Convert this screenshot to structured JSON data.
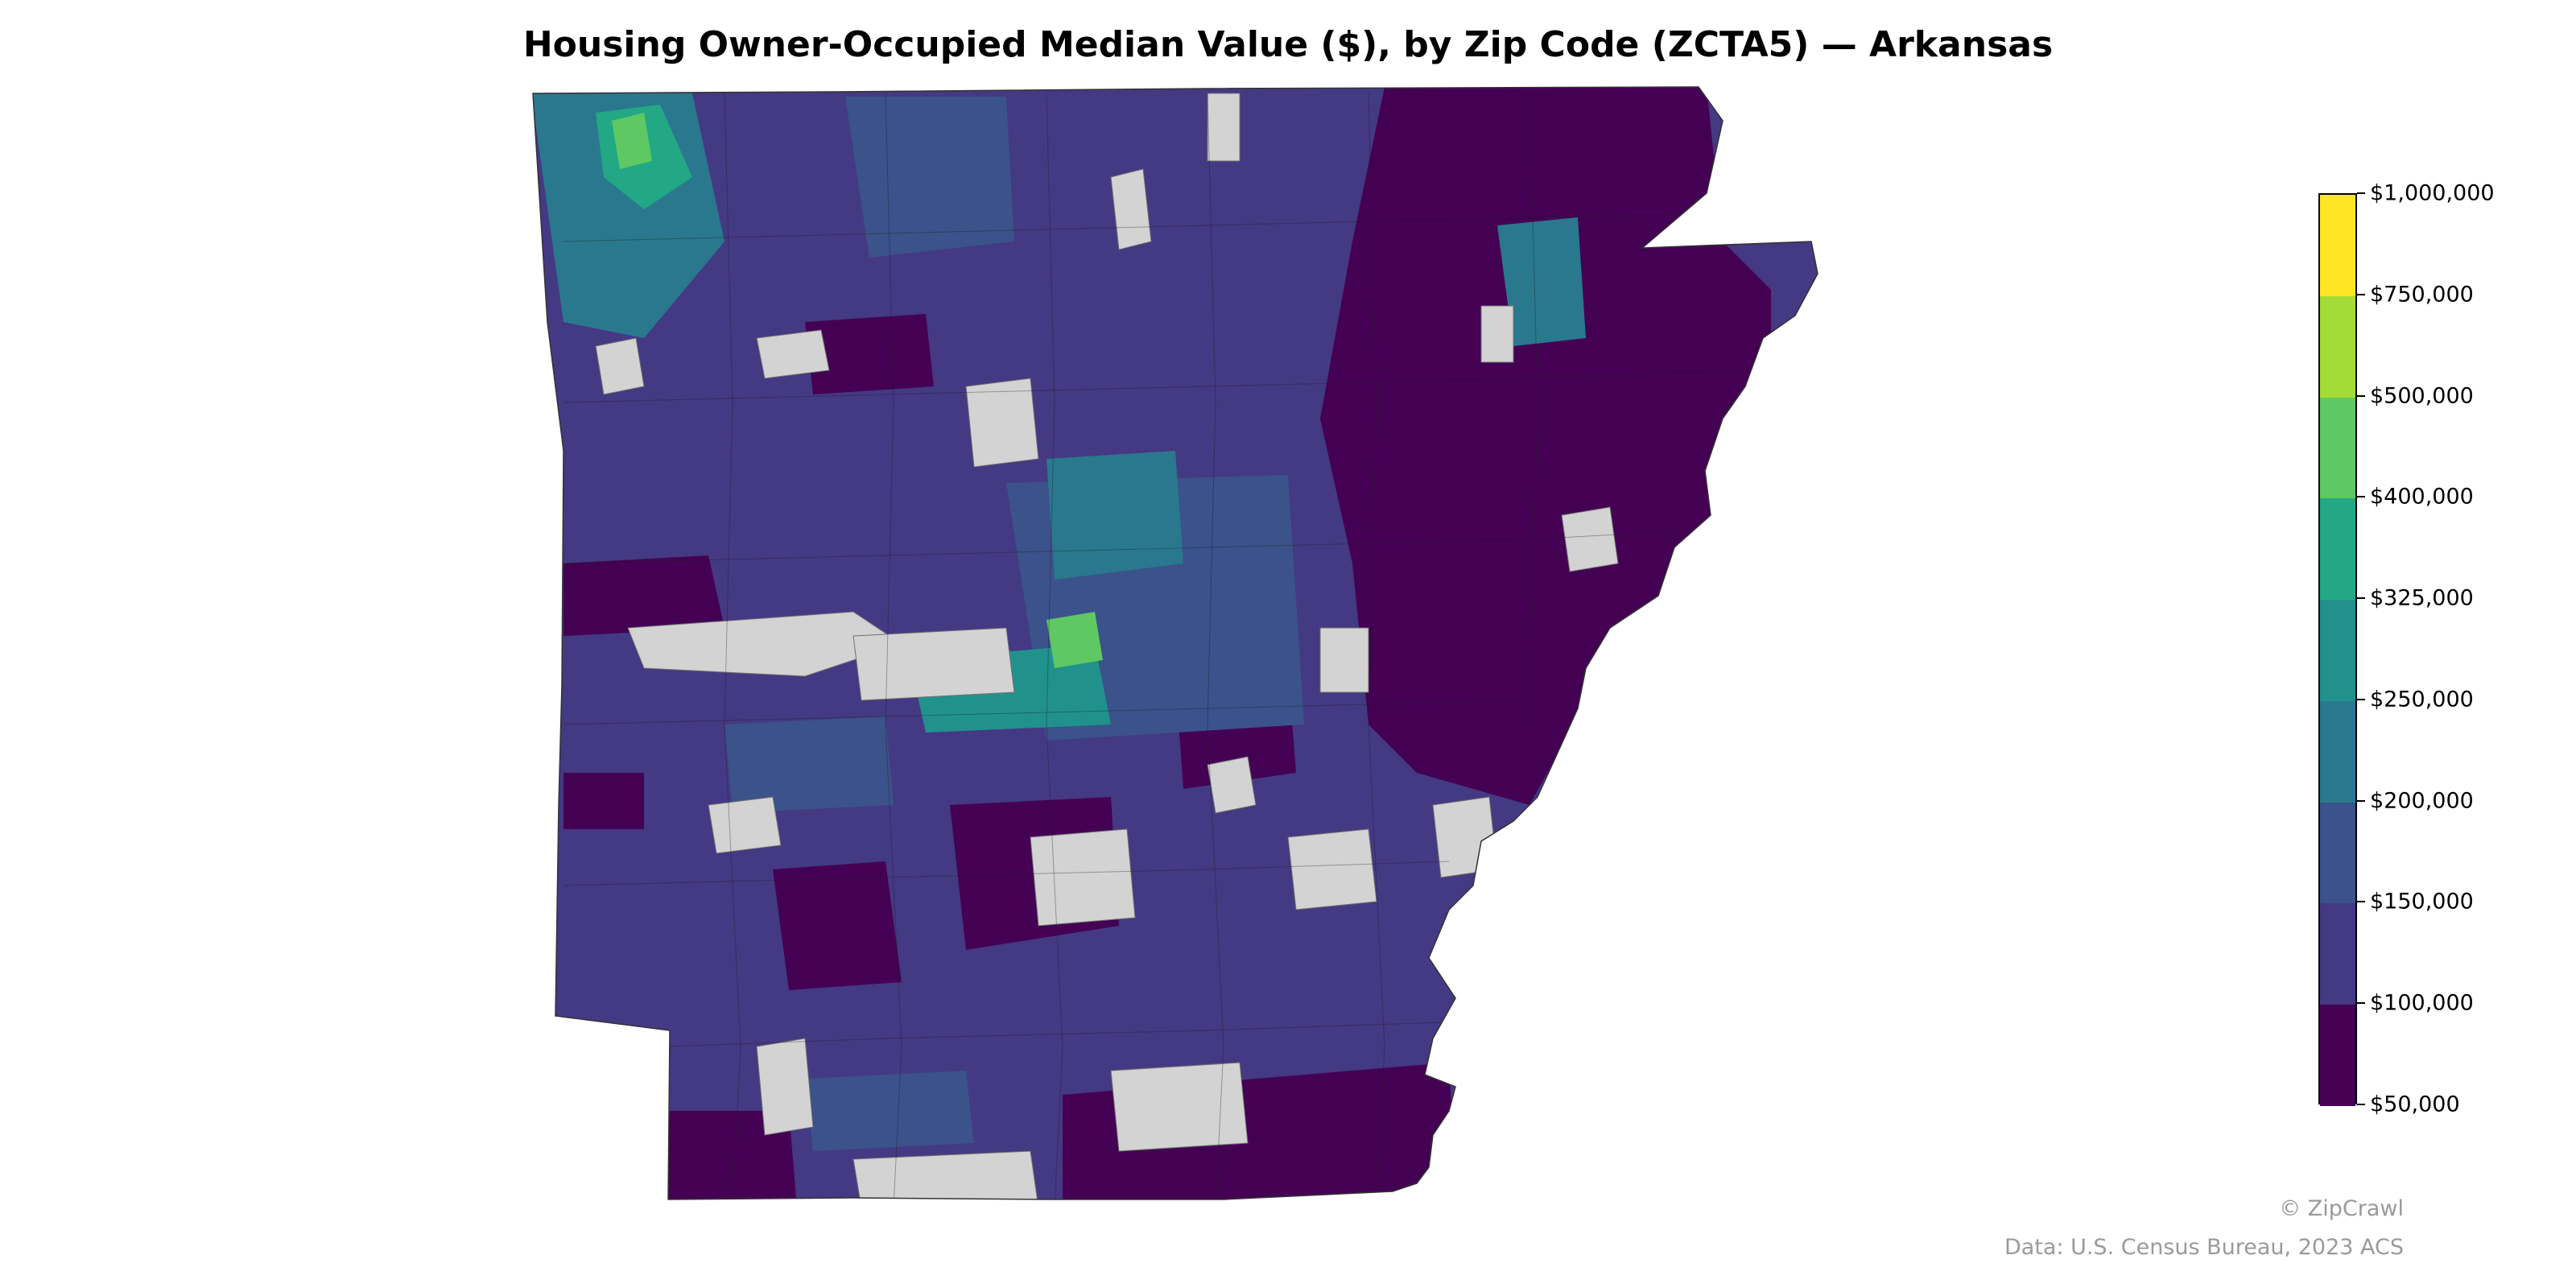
{
  "title": "Housing Owner-Occupied Median Value ($), by Zip Code (ZCTA5) — Arkansas",
  "legend": {
    "ticks": [
      "$1,000,000",
      "$750,000",
      "$500,000",
      "$400,000",
      "$325,000",
      "$250,000",
      "$200,000",
      "$150,000",
      "$100,000",
      "$50,000"
    ],
    "bin_colors": [
      "#fde725",
      "#a5db36",
      "#5ec962",
      "#22a884",
      "#21918c",
      "#2a788e",
      "#3b528b",
      "#443983",
      "#440154"
    ]
  },
  "no_data_color": "#d3d3d3",
  "credits": {
    "brand": "© ZipCrawl",
    "source": "Data: U.S. Census Bureau, 2023 ACS"
  }
}
